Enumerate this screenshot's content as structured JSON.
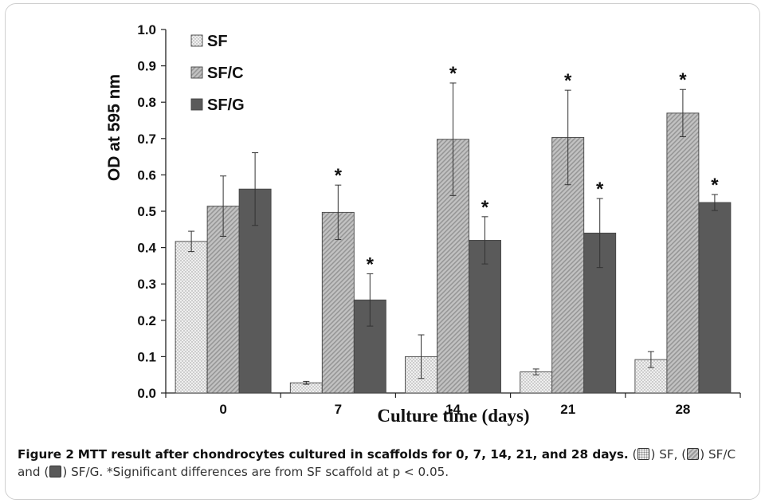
{
  "chart_data": {
    "type": "bar",
    "categories": [
      "0",
      "7",
      "14",
      "21",
      "28"
    ],
    "series": [
      {
        "name": "SF",
        "values": [
          0.417,
          0.028,
          0.1,
          0.058,
          0.092
        ],
        "errors": [
          0.028,
          0.004,
          0.06,
          0.008,
          0.022
        ],
        "sig": [
          false,
          false,
          false,
          false,
          false
        ]
      },
      {
        "name": "SF/C",
        "values": [
          0.514,
          0.497,
          0.698,
          0.703,
          0.77
        ],
        "errors": [
          0.083,
          0.075,
          0.155,
          0.13,
          0.065
        ],
        "sig": [
          false,
          true,
          true,
          true,
          true
        ]
      },
      {
        "name": "SF/G",
        "values": [
          0.561,
          0.256,
          0.42,
          0.44,
          0.524
        ],
        "errors": [
          0.1,
          0.072,
          0.065,
          0.095,
          0.022
        ],
        "sig": [
          false,
          true,
          true,
          true,
          true
        ]
      }
    ],
    "xlabel": "Culture time (days)",
    "ylabel": "OD  at 595 nm",
    "ylim": [
      0.0,
      1.0
    ],
    "yticks": [
      "0.0",
      "0.1",
      "0.2",
      "0.3",
      "0.4",
      "0.5",
      "0.6",
      "0.7",
      "0.8",
      "0.9",
      "1.0"
    ],
    "sig_marker": "*",
    "legend_position": "top-left",
    "grid": false,
    "colors": {
      "SF": "#ececec",
      "SF/C": "#b3b3b3",
      "SF/G": "#5a5a5a"
    }
  },
  "caption": {
    "label": "Figure 2",
    "bold_text": "MTT result after chondrocytes cultured in scaffolds for 0, 7, 14, 21, and 28 days.",
    "legend_sf": "SF,",
    "legend_sfc": "SF/C and",
    "legend_sfg": "SF/G. *Significant differences are from SF scaffold at p < 0.05."
  }
}
